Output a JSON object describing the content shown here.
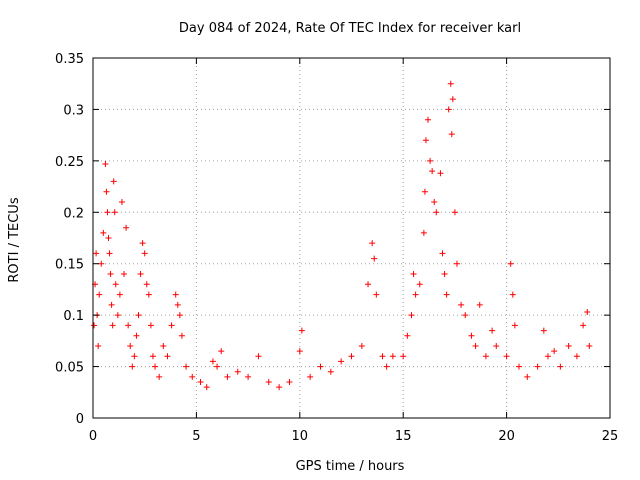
{
  "chart_data": {
    "type": "scatter",
    "title": "Day 084 of 2024, Rate Of TEC Index for receiver karl",
    "xlabel": "GPS time / hours",
    "ylabel": "ROTI / TECUs",
    "xlim": [
      0,
      25
    ],
    "ylim": [
      0,
      0.35
    ],
    "x_ticks": [
      0,
      5,
      10,
      15,
      20,
      25
    ],
    "y_ticks": [
      0,
      0.05,
      0.1,
      0.15,
      0.2,
      0.25,
      0.3,
      0.35
    ],
    "x_tick_labels": [
      "0",
      "5",
      "10",
      "15",
      "20",
      "25"
    ],
    "y_tick_labels": [
      "0",
      "0.05",
      "0.1",
      "0.15",
      "0.2",
      "0.25",
      "0.3",
      "0.35"
    ],
    "grid": true,
    "marker": "plus",
    "series": [
      {
        "color": "#ff0000",
        "points": [
          [
            0.05,
            0.09
          ],
          [
            0.1,
            0.13
          ],
          [
            0.15,
            0.16
          ],
          [
            0.2,
            0.1
          ],
          [
            0.25,
            0.07
          ],
          [
            0.3,
            0.12
          ],
          [
            0.4,
            0.15
          ],
          [
            0.5,
            0.18
          ],
          [
            0.6,
            0.247
          ],
          [
            0.65,
            0.22
          ],
          [
            0.7,
            0.2
          ],
          [
            0.75,
            0.175
          ],
          [
            0.8,
            0.16
          ],
          [
            0.85,
            0.14
          ],
          [
            0.9,
            0.11
          ],
          [
            0.95,
            0.09
          ],
          [
            1.0,
            0.23
          ],
          [
            1.05,
            0.2
          ],
          [
            1.1,
            0.13
          ],
          [
            1.2,
            0.1
          ],
          [
            1.3,
            0.12
          ],
          [
            1.4,
            0.21
          ],
          [
            1.5,
            0.14
          ],
          [
            1.6,
            0.185
          ],
          [
            1.7,
            0.09
          ],
          [
            1.8,
            0.07
          ],
          [
            1.9,
            0.05
          ],
          [
            2.0,
            0.06
          ],
          [
            2.1,
            0.08
          ],
          [
            2.2,
            0.1
          ],
          [
            2.3,
            0.14
          ],
          [
            2.4,
            0.17
          ],
          [
            2.5,
            0.16
          ],
          [
            2.6,
            0.13
          ],
          [
            2.7,
            0.12
          ],
          [
            2.8,
            0.09
          ],
          [
            2.9,
            0.06
          ],
          [
            3.0,
            0.05
          ],
          [
            3.2,
            0.04
          ],
          [
            3.4,
            0.07
          ],
          [
            3.6,
            0.06
          ],
          [
            3.8,
            0.09
          ],
          [
            4.0,
            0.12
          ],
          [
            4.1,
            0.11
          ],
          [
            4.2,
            0.1
          ],
          [
            4.3,
            0.08
          ],
          [
            4.5,
            0.05
          ],
          [
            4.8,
            0.04
          ],
          [
            5.2,
            0.035
          ],
          [
            5.5,
            0.03
          ],
          [
            5.8,
            0.055
          ],
          [
            6.0,
            0.05
          ],
          [
            6.2,
            0.065
          ],
          [
            6.5,
            0.04
          ],
          [
            7.0,
            0.045
          ],
          [
            7.5,
            0.04
          ],
          [
            8.0,
            0.06
          ],
          [
            8.5,
            0.035
          ],
          [
            9.0,
            0.03
          ],
          [
            9.5,
            0.035
          ],
          [
            10.0,
            0.065
          ],
          [
            10.1,
            0.085
          ],
          [
            10.5,
            0.04
          ],
          [
            11.0,
            0.05
          ],
          [
            11.5,
            0.045
          ],
          [
            12.0,
            0.055
          ],
          [
            12.5,
            0.06
          ],
          [
            13.0,
            0.07
          ],
          [
            13.3,
            0.13
          ],
          [
            13.5,
            0.17
          ],
          [
            13.6,
            0.155
          ],
          [
            13.7,
            0.12
          ],
          [
            14.0,
            0.06
          ],
          [
            14.2,
            0.05
          ],
          [
            14.5,
            0.06
          ],
          [
            15.0,
            0.06
          ],
          [
            15.2,
            0.08
          ],
          [
            15.4,
            0.1
          ],
          [
            15.5,
            0.14
          ],
          [
            15.6,
            0.12
          ],
          [
            15.8,
            0.13
          ],
          [
            16.0,
            0.18
          ],
          [
            16.05,
            0.22
          ],
          [
            16.1,
            0.27
          ],
          [
            16.2,
            0.29
          ],
          [
            16.3,
            0.25
          ],
          [
            16.4,
            0.24
          ],
          [
            16.5,
            0.21
          ],
          [
            16.6,
            0.2
          ],
          [
            16.8,
            0.238
          ],
          [
            16.9,
            0.16
          ],
          [
            17.0,
            0.14
          ],
          [
            17.1,
            0.12
          ],
          [
            17.2,
            0.3
          ],
          [
            17.3,
            0.325
          ],
          [
            17.35,
            0.276
          ],
          [
            17.4,
            0.31
          ],
          [
            17.5,
            0.2
          ],
          [
            17.6,
            0.15
          ],
          [
            17.8,
            0.11
          ],
          [
            18.0,
            0.1
          ],
          [
            18.3,
            0.08
          ],
          [
            18.5,
            0.07
          ],
          [
            18.7,
            0.11
          ],
          [
            19.0,
            0.06
          ],
          [
            19.3,
            0.085
          ],
          [
            19.5,
            0.07
          ],
          [
            20.0,
            0.06
          ],
          [
            20.2,
            0.15
          ],
          [
            20.3,
            0.12
          ],
          [
            20.4,
            0.09
          ],
          [
            20.6,
            0.05
          ],
          [
            21.0,
            0.04
          ],
          [
            21.5,
            0.05
          ],
          [
            21.8,
            0.085
          ],
          [
            22.0,
            0.06
          ],
          [
            22.3,
            0.065
          ],
          [
            22.6,
            0.05
          ],
          [
            23.0,
            0.07
          ],
          [
            23.4,
            0.06
          ],
          [
            23.7,
            0.09
          ],
          [
            23.9,
            0.103
          ],
          [
            24.0,
            0.07
          ]
        ]
      }
    ]
  }
}
